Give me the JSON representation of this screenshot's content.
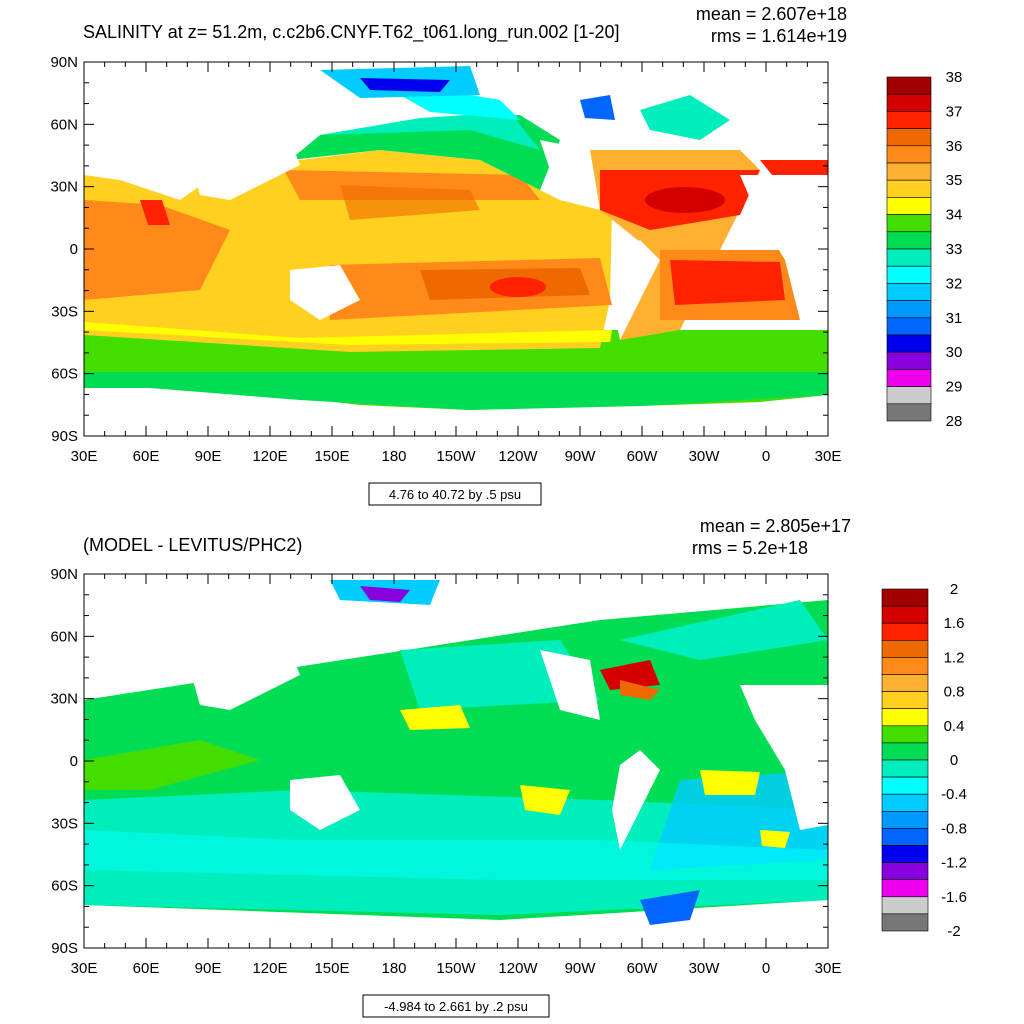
{
  "chart_data": [
    {
      "type": "heatmap",
      "title": "SALINITY at z=  51.2m, c.c2b6.CNYF.T62_t061.long_run.002 [1-20]",
      "stats": {
        "mean": "mean = 2.607e+18",
        "rms": "rms = 1.614e+19"
      },
      "x_ticks": [
        "30E",
        "60E",
        "90E",
        "120E",
        "150E",
        "180",
        "150W",
        "120W",
        "90W",
        "60W",
        "30W",
        "0",
        "30E"
      ],
      "y_ticks": [
        "90N",
        "60N",
        "30N",
        "0",
        "30S",
        "60S",
        "90S"
      ],
      "colorbar_labels": [
        "38",
        "37",
        "36",
        "35",
        "34",
        "33",
        "32",
        "31",
        "30",
        "29",
        "28"
      ],
      "colorbar_colors": [
        "#a00000",
        "#d40000",
        "#ff2200",
        "#ee6a00",
        "#ff8a1a",
        "#ffb030",
        "#ffd020",
        "#ffff00",
        "#44dd00",
        "#00dd55",
        "#00eebb",
        "#00ffff",
        "#00ccff",
        "#0099ff",
        "#0066ff",
        "#0000ee",
        "#8800dd",
        "#ee00ee",
        "#cccccc",
        "#777777"
      ],
      "info": "4.76 to 40.72 by .5 psu"
    },
    {
      "type": "heatmap",
      "title": "(MODEL - LEVITUS/PHC2)",
      "stats": {
        "mean": "mean = 2.805e+17",
        "rms": "rms = 5.2e+18"
      },
      "x_ticks": [
        "30E",
        "60E",
        "90E",
        "120E",
        "150E",
        "180",
        "150W",
        "120W",
        "90W",
        "60W",
        "30W",
        "0",
        "30E"
      ],
      "y_ticks": [
        "90N",
        "60N",
        "30N",
        "0",
        "30S",
        "60S",
        "90S"
      ],
      "colorbar_labels": [
        "2",
        "1.6",
        "1.2",
        "0.8",
        "0.4",
        "0",
        "-0.4",
        "-0.8",
        "-1.2",
        "-1.6",
        "-2"
      ],
      "colorbar_colors": [
        "#a00000",
        "#d40000",
        "#ff2200",
        "#ee6a00",
        "#ff8a1a",
        "#ffb030",
        "#ffd020",
        "#ffff00",
        "#44dd00",
        "#00dd55",
        "#00eebb",
        "#00ffff",
        "#00ccff",
        "#0099ff",
        "#0066ff",
        "#0000ee",
        "#8800dd",
        "#ee00ee",
        "#cccccc",
        "#777777"
      ],
      "info": "-4.984 to 2.661 by .2 psu"
    }
  ]
}
